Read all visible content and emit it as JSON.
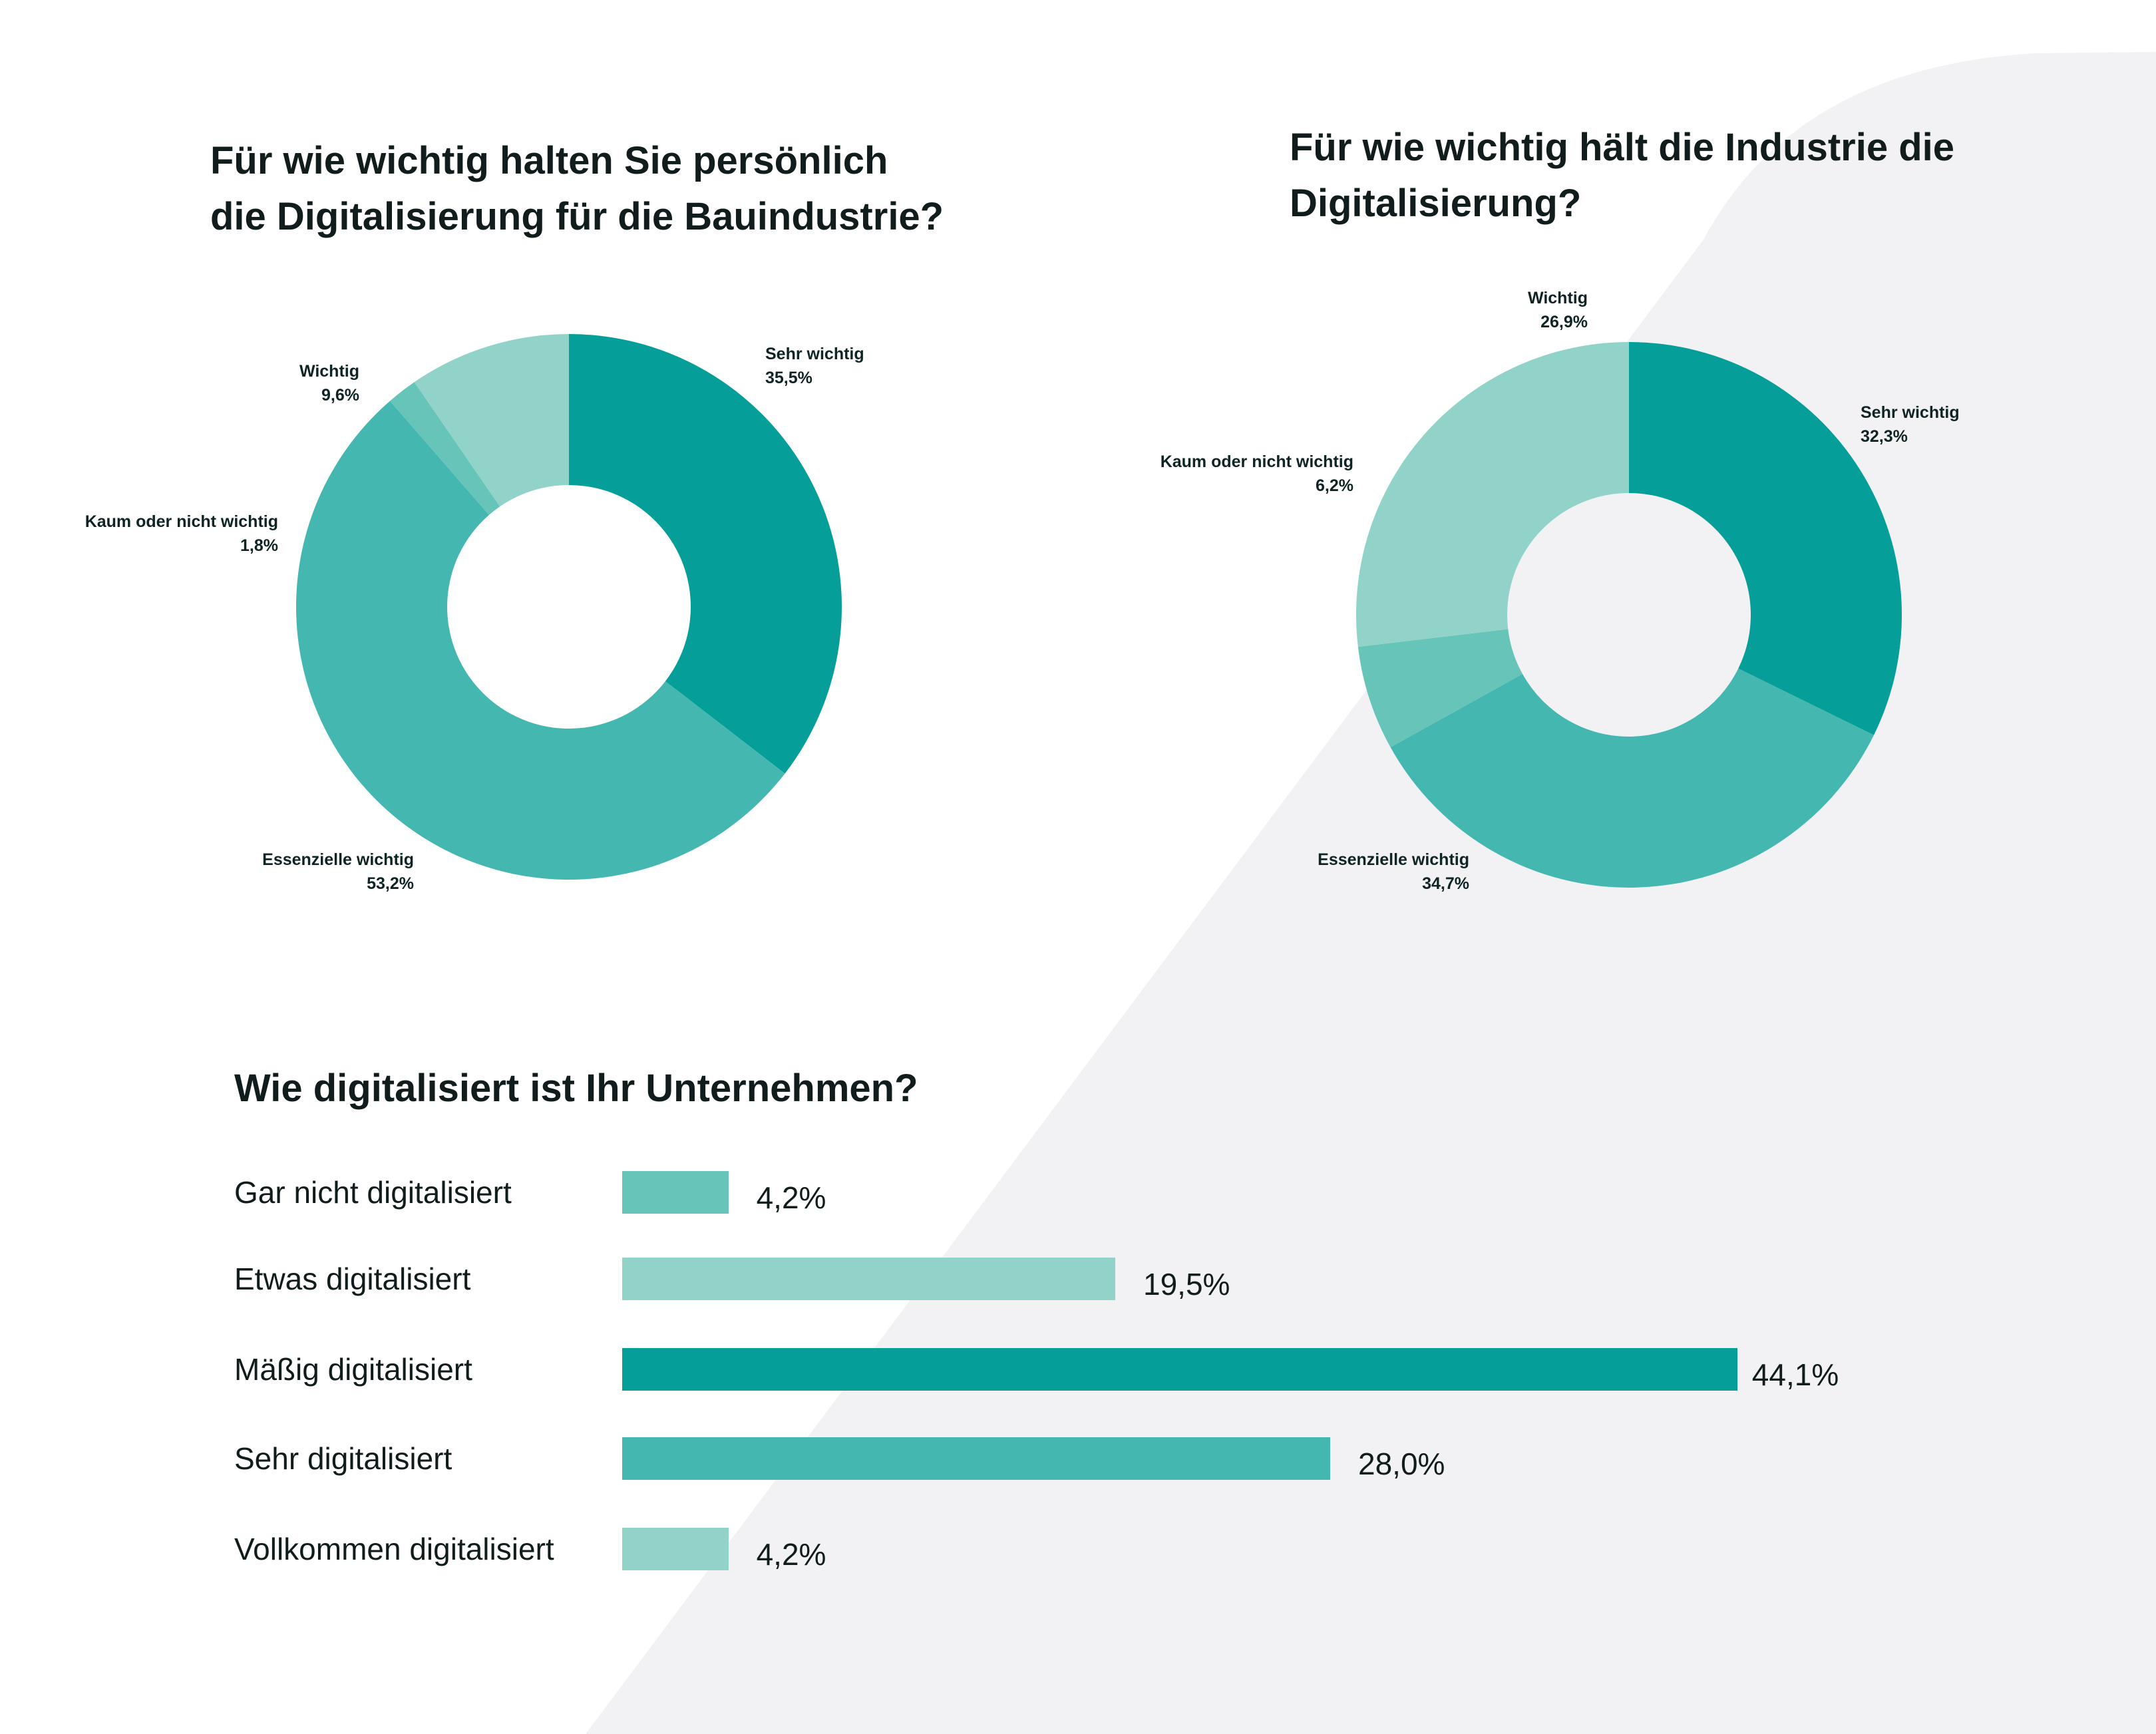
{
  "colors": {
    "dark": "#069e99",
    "medium": "#44b8b0",
    "light": "#92d3c9",
    "mid_light": "#66c4b8",
    "background_shape": "#f2f2f4"
  },
  "chart_data": [
    {
      "type": "pie",
      "variant": "donut",
      "title": "Für wie wichtig halten Sie persönlich die Digitalisierung für die Bauindustrie?",
      "title_lines": [
        "Für wie wichtig halten Sie persönlich",
        "die Digitalisierung für die Bauindustrie?"
      ],
      "slices": [
        {
          "label": "Sehr wichtig",
          "value": 35.5,
          "value_label": "35,5%",
          "color": "#069e99"
        },
        {
          "label": "Essenzielle wichtig",
          "value": 53.2,
          "value_label": "53,2%",
          "color": "#44b8b0"
        },
        {
          "label": "Kaum oder nicht wichtig",
          "value": 1.8,
          "value_label": "1,8%",
          "color": "#66c4b8"
        },
        {
          "label": "Wichtig",
          "value": 9.6,
          "value_label": "9,6%",
          "color": "#92d3c9"
        }
      ]
    },
    {
      "type": "pie",
      "variant": "donut",
      "title": "Für wie wichtig hält die Industrie die Digitalisierung?",
      "title_lines": [
        "Für wie wichtig hält die Industrie die",
        "Digitalisierung?"
      ],
      "slices": [
        {
          "label": "Sehr wichtig",
          "value": 32.3,
          "value_label": "32,3%",
          "color": "#069e99"
        },
        {
          "label": "Essenzielle wichtig",
          "value": 34.7,
          "value_label": "34,7%",
          "color": "#44b8b0"
        },
        {
          "label": "Kaum oder nicht wichtig",
          "value": 6.2,
          "value_label": "6,2%",
          "color": "#66c4b8"
        },
        {
          "label": "Wichtig",
          "value": 26.9,
          "value_label": "26,9%",
          "color": "#92d3c9"
        }
      ]
    },
    {
      "type": "bar",
      "orientation": "horizontal",
      "title": "Wie digitalisiert ist Ihr Unternehmen?",
      "categories": [
        "Gar nicht digitalisiert",
        "Etwas digitalisiert",
        "Mäßig digitalisiert",
        "Sehr digitalisiert",
        "Vollkommen digitalisiert"
      ],
      "values": [
        4.2,
        19.5,
        44.1,
        28.0,
        4.2
      ],
      "value_labels": [
        "4,2%",
        "19,5%",
        "44,1%",
        "28,0%",
        "4,2%"
      ],
      "colors": [
        "#66c4b8",
        "#92d3c9",
        "#069e99",
        "#44b8b0",
        "#92d3c9"
      ]
    }
  ]
}
